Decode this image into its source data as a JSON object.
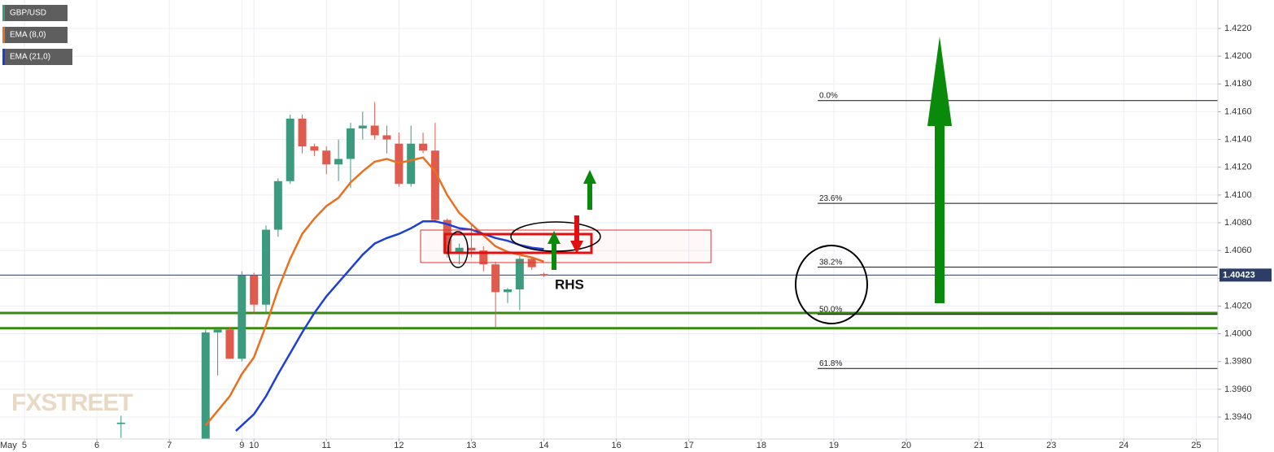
{
  "chart_data": {
    "type": "candlestick",
    "watermark": "FXSTREET",
    "x_month_label": "May",
    "xlim": [
      -2.02,
      98.79
    ],
    "xticks": [
      {
        "value": 0,
        "label": "5"
      },
      {
        "value": 6,
        "label": "6"
      },
      {
        "value": 12,
        "label": "7"
      },
      {
        "value": 18,
        "label": "9"
      },
      {
        "value": 19,
        "label": "10"
      },
      {
        "value": 25,
        "label": "11"
      },
      {
        "value": 31,
        "label": "12"
      },
      {
        "value": 37,
        "label": "13"
      },
      {
        "value": 43,
        "label": "14"
      },
      {
        "value": 49,
        "label": "16"
      },
      {
        "value": 55,
        "label": "17"
      },
      {
        "value": 61,
        "label": "18"
      },
      {
        "value": 67,
        "label": "19"
      },
      {
        "value": 73,
        "label": "20"
      },
      {
        "value": 79,
        "label": "21"
      },
      {
        "value": 85,
        "label": "23"
      },
      {
        "value": 91,
        "label": "24"
      },
      {
        "value": 97,
        "label": "25"
      }
    ],
    "ylim": [
      1.39242,
      1.42405
    ],
    "yticks": [
      {
        "value": 1.394,
        "label": "1.3940"
      },
      {
        "value": 1.396,
        "label": "1.3960"
      },
      {
        "value": 1.398,
        "label": "1.3980"
      },
      {
        "value": 1.4,
        "label": "1.4000"
      },
      {
        "value": 1.402,
        "label": "1.4020"
      },
      {
        "value": 1.404,
        "label": "1.4040"
      },
      {
        "value": 1.406,
        "label": "1.4060"
      },
      {
        "value": 1.408,
        "label": "1.4080"
      },
      {
        "value": 1.41,
        "label": "1.4100"
      },
      {
        "value": 1.412,
        "label": "1.4120"
      },
      {
        "value": 1.414,
        "label": "1.4140"
      },
      {
        "value": 1.416,
        "label": "1.4160"
      },
      {
        "value": 1.418,
        "label": "1.4180"
      },
      {
        "value": 1.42,
        "label": "1.4200"
      },
      {
        "value": 1.422,
        "label": "1.4220"
      }
    ],
    "grid": true,
    "candles": {
      "name": "GBP/USD",
      "up_color": "#3c9a7e",
      "down_color": "#df5b4e",
      "x": [
        8,
        15,
        16,
        17,
        18,
        19,
        20,
        21,
        22,
        23,
        24,
        25,
        26,
        27,
        28,
        29,
        30,
        31,
        32,
        33,
        34,
        35,
        36,
        37,
        38,
        39,
        40,
        41,
        42,
        43
      ],
      "open": [
        1.3935,
        1.3915,
        1.4001,
        1.4003,
        1.3982,
        1.4042,
        1.4021,
        1.4075,
        1.411,
        1.4155,
        1.4135,
        1.4132,
        1.4122,
        1.4126,
        1.4148,
        1.415,
        1.4143,
        1.4137,
        1.4108,
        1.4137,
        1.4132,
        1.4082,
        1.4058,
        1.4062,
        1.406,
        1.405,
        1.403,
        1.4032,
        1.4054,
        1.4043
      ],
      "high": [
        1.3941,
        1.4003,
        1.4005,
        1.4005,
        1.4045,
        1.4044,
        1.4078,
        1.4112,
        1.4158,
        1.4158,
        1.4137,
        1.4135,
        1.414,
        1.4152,
        1.416,
        1.4167,
        1.415,
        1.4145,
        1.415,
        1.4145,
        1.4152,
        1.4083,
        1.4065,
        1.4078,
        1.4063,
        1.4052,
        1.4033,
        1.4056,
        1.4055,
        1.4044
      ],
      "low": [
        1.3925,
        1.39,
        1.397,
        1.3982,
        1.398,
        1.4015,
        1.4014,
        1.407,
        1.4108,
        1.413,
        1.4128,
        1.4115,
        1.411,
        1.4105,
        1.414,
        1.414,
        1.413,
        1.4106,
        1.4106,
        1.413,
        1.408,
        1.4055,
        1.405,
        1.4055,
        1.4045,
        1.4005,
        1.4022,
        1.4017,
        1.4046,
        1.4041
      ],
      "close": [
        1.3936,
        1.4001,
        1.4003,
        1.3982,
        1.4042,
        1.4021,
        1.4075,
        1.411,
        1.4155,
        1.4135,
        1.4132,
        1.4122,
        1.4126,
        1.4148,
        1.415,
        1.4143,
        1.414,
        1.4108,
        1.4137,
        1.4132,
        1.4082,
        1.4058,
        1.4062,
        1.406,
        1.405,
        1.403,
        1.4032,
        1.4054,
        1.4048,
        1.4042
      ]
    },
    "series": [
      {
        "name": "EMA (8,0)",
        "color": "#e8701e",
        "x": [
          15,
          17,
          18,
          19,
          20,
          21,
          22,
          23,
          24,
          25,
          26,
          27,
          28,
          29,
          30,
          31,
          32,
          33,
          34,
          35,
          36,
          37,
          38,
          39,
          40,
          41,
          42,
          43
        ],
        "values": [
          1.3934,
          1.3955,
          1.3971,
          1.3983,
          1.4006,
          1.4032,
          1.4054,
          1.4072,
          1.4083,
          1.4092,
          1.4098,
          1.4109,
          1.4117,
          1.4124,
          1.4126,
          1.4123,
          1.4125,
          1.4127,
          1.4117,
          1.41,
          1.4087,
          1.4079,
          1.4071,
          1.4063,
          1.4059,
          1.4057,
          1.4055,
          1.4052
        ]
      },
      {
        "name": "EMA (21,0)",
        "color": "#1c3fd8",
        "x": [
          17.5,
          19,
          20,
          21,
          22,
          23,
          24,
          25,
          26,
          27,
          28,
          29,
          30,
          31,
          32,
          33,
          34,
          35,
          36,
          37,
          38,
          39,
          40,
          41,
          42,
          43
        ],
        "values": [
          1.393,
          1.3942,
          1.3955,
          1.3971,
          1.3986,
          1.4001,
          1.4015,
          1.4027,
          1.4037,
          1.4047,
          1.4057,
          1.4065,
          1.4069,
          1.4072,
          1.4076,
          1.4081,
          1.4081,
          1.4079,
          1.4076,
          1.4075,
          1.4072,
          1.4069,
          1.4067,
          1.4064,
          1.4062,
          1.4061
        ]
      }
    ],
    "last_price": 1.40423,
    "support_levels": [
      1.4015,
      1.4004
    ],
    "fib_levels": [
      {
        "label": "0.0%",
        "price": 1.4168
      },
      {
        "label": "23.6%",
        "price": 1.4094
      },
      {
        "label": "38.2%",
        "price": 1.4048
      },
      {
        "label": "50.0%",
        "price": 1.4014
      },
      {
        "label": "61.8%",
        "price": 1.3975
      }
    ],
    "annotations": [
      "RHS"
    ]
  }
}
